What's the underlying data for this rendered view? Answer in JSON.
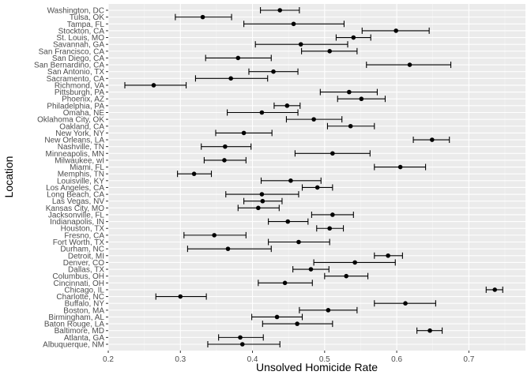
{
  "chart_data": {
    "type": "scatter",
    "subtype": "point-with-errorbars",
    "xlabel": "Unsolved Homicide Rate",
    "ylabel": "Location",
    "xlim": [
      0.2,
      0.75
    ],
    "x_ticks": [
      "0.2",
      "0.3",
      "0.4",
      "0.5",
      "0.6",
      "0.7"
    ],
    "x_tick_values": [
      0.2,
      0.3,
      0.4,
      0.5,
      0.6,
      0.7
    ],
    "grid": true,
    "background": "#ebebeb",
    "point_color": "#000000",
    "points": [
      {
        "city": "Albuquerque, NM",
        "estimate": 0.386,
        "low": 0.338,
        "high": 0.438
      },
      {
        "city": "Atlanta, GA",
        "estimate": 0.383,
        "low": 0.353,
        "high": 0.415
      },
      {
        "city": "Baltimore, MD",
        "estimate": 0.646,
        "low": 0.628,
        "high": 0.663
      },
      {
        "city": "Baton Rouge, LA",
        "estimate": 0.462,
        "low": 0.414,
        "high": 0.511
      },
      {
        "city": "Birmingham, AL",
        "estimate": 0.434,
        "low": 0.399,
        "high": 0.469
      },
      {
        "city": "Boston, MA",
        "estimate": 0.505,
        "low": 0.465,
        "high": 0.545
      },
      {
        "city": "Buffalo, NY",
        "estimate": 0.612,
        "low": 0.569,
        "high": 0.654
      },
      {
        "city": "Charlotte, NC",
        "estimate": 0.3,
        "low": 0.266,
        "high": 0.336
      },
      {
        "city": "Chicago, IL",
        "estimate": 0.736,
        "low": 0.724,
        "high": 0.747
      },
      {
        "city": "Cincinnati, OH",
        "estimate": 0.445,
        "low": 0.408,
        "high": 0.483
      },
      {
        "city": "Columbus, OH",
        "estimate": 0.53,
        "low": 0.5,
        "high": 0.56
      },
      {
        "city": "Dallas, TX",
        "estimate": 0.481,
        "low": 0.456,
        "high": 0.506
      },
      {
        "city": "Denver, CO",
        "estimate": 0.542,
        "low": 0.485,
        "high": 0.598
      },
      {
        "city": "Detroit, MI",
        "estimate": 0.588,
        "low": 0.569,
        "high": 0.608
      },
      {
        "city": "Durham, NC",
        "estimate": 0.366,
        "low": 0.31,
        "high": 0.426
      },
      {
        "city": "Fort Worth, TX",
        "estimate": 0.464,
        "low": 0.422,
        "high": 0.507
      },
      {
        "city": "Fresno, CA",
        "estimate": 0.347,
        "low": 0.305,
        "high": 0.391
      },
      {
        "city": "Houston, TX",
        "estimate": 0.507,
        "low": 0.489,
        "high": 0.526
      },
      {
        "city": "Indianapolis, IN",
        "estimate": 0.449,
        "low": 0.422,
        "high": 0.477
      },
      {
        "city": "Jacksonville, FL",
        "estimate": 0.511,
        "low": 0.482,
        "high": 0.54
      },
      {
        "city": "Kansas City, MO",
        "estimate": 0.408,
        "low": 0.38,
        "high": 0.437
      },
      {
        "city": "Las Vegas, NV",
        "estimate": 0.414,
        "low": 0.388,
        "high": 0.441
      },
      {
        "city": "Long Beach, CA",
        "estimate": 0.413,
        "low": 0.363,
        "high": 0.464
      },
      {
        "city": "Los Angeles, CA",
        "estimate": 0.49,
        "low": 0.469,
        "high": 0.511
      },
      {
        "city": "Louisville, KY",
        "estimate": 0.453,
        "low": 0.412,
        "high": 0.495
      },
      {
        "city": "Memphis, TN",
        "estimate": 0.319,
        "low": 0.296,
        "high": 0.343
      },
      {
        "city": "Miami, FL",
        "estimate": 0.605,
        "low": 0.569,
        "high": 0.64
      },
      {
        "city": "Milwaukee, wI",
        "estimate": 0.361,
        "low": 0.333,
        "high": 0.391
      },
      {
        "city": "Minneapolis, MN",
        "estimate": 0.511,
        "low": 0.459,
        "high": 0.563
      },
      {
        "city": "Nashville, TN",
        "estimate": 0.362,
        "low": 0.329,
        "high": 0.398
      },
      {
        "city": "New Orleans, LA",
        "estimate": 0.649,
        "low": 0.623,
        "high": 0.673
      },
      {
        "city": "New York, NY",
        "estimate": 0.388,
        "low": 0.349,
        "high": 0.427
      },
      {
        "city": "Oakland, CA",
        "estimate": 0.536,
        "low": 0.504,
        "high": 0.569
      },
      {
        "city": "Oklahoma City, OK",
        "estimate": 0.485,
        "low": 0.447,
        "high": 0.524
      },
      {
        "city": "Omaha, NE",
        "estimate": 0.413,
        "low": 0.365,
        "high": 0.463
      },
      {
        "city": "Philadelphia, PA",
        "estimate": 0.448,
        "low": 0.43,
        "high": 0.466
      },
      {
        "city": "Phoenix, AZ",
        "estimate": 0.551,
        "low": 0.518,
        "high": 0.584
      },
      {
        "city": "Pittsburgh, PA",
        "estimate": 0.534,
        "low": 0.494,
        "high": 0.573
      },
      {
        "city": "Richmond, VA",
        "estimate": 0.263,
        "low": 0.223,
        "high": 0.308
      },
      {
        "city": "Sacramento, CA",
        "estimate": 0.37,
        "low": 0.321,
        "high": 0.421
      },
      {
        "city": "San Antonio, TX",
        "estimate": 0.429,
        "low": 0.395,
        "high": 0.463
      },
      {
        "city": "San Bernardino, CA",
        "estimate": 0.618,
        "low": 0.558,
        "high": 0.675
      },
      {
        "city": "San Diego, CA",
        "estimate": 0.38,
        "low": 0.335,
        "high": 0.426
      },
      {
        "city": "San Francisco, CA",
        "estimate": 0.507,
        "low": 0.468,
        "high": 0.545
      },
      {
        "city": "Savannah, GA",
        "estimate": 0.467,
        "low": 0.404,
        "high": 0.532
      },
      {
        "city": "St. Louis, MO",
        "estimate": 0.54,
        "low": 0.516,
        "high": 0.564
      },
      {
        "city": "Stockton, CA",
        "estimate": 0.599,
        "low": 0.552,
        "high": 0.645
      },
      {
        "city": "Tampa, FL",
        "estimate": 0.457,
        "low": 0.388,
        "high": 0.527
      },
      {
        "city": "Tulsa, OK",
        "estimate": 0.331,
        "low": 0.293,
        "high": 0.371
      },
      {
        "city": "Washington, DC",
        "estimate": 0.438,
        "low": 0.411,
        "high": 0.465
      }
    ]
  }
}
